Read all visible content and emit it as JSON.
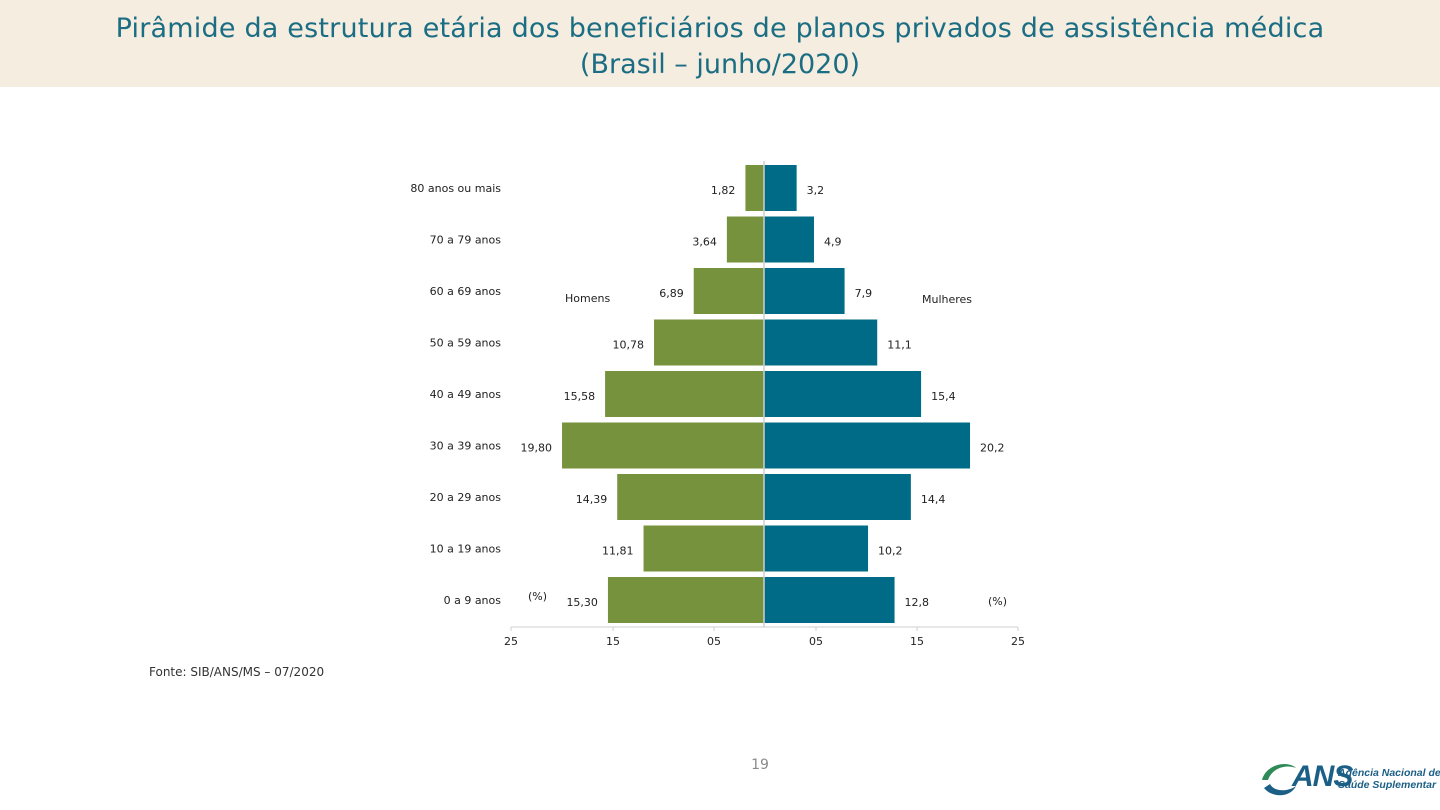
{
  "page": {
    "title_line1": "Pirâmide da estrutura etária dos beneficiários de planos privados de assistência médica",
    "title_line2": "(Brasil – junho/2020)",
    "source": "Fonte: SIB/ANS/MS – 07/2020",
    "page_number": "19"
  },
  "logo": {
    "acronym": "ANS",
    "org_line1": "Agência Nacional de",
    "org_line2": "Saúde Suplementar"
  },
  "colors": {
    "title": "#1b6d83",
    "band": "#f4ede0",
    "men": "#77923c",
    "women": "#006b86"
  },
  "chart_data": {
    "type": "bar",
    "orientation": "horizontal-pyramid",
    "title": "Pirâmide da estrutura etária dos beneficiários de planos privados de assistência médica (Brasil – junho/2020)",
    "categories": [
      "80 anos ou mais",
      "70 a 79 anos",
      "60 a 69 anos",
      "50 a 59 anos",
      "40 a 49 anos",
      "30 a 39 anos",
      "20 a 29 anos",
      "10 a 19 anos",
      "0 a 9 anos"
    ],
    "series": [
      {
        "name": "Homens",
        "side": "left",
        "values": [
          1.82,
          3.64,
          6.89,
          10.78,
          15.58,
          19.8,
          14.39,
          11.81,
          15.3
        ],
        "labels": [
          "1,82",
          "3,64",
          "6,89",
          "10,78",
          "15,58",
          "19,80",
          "14,39",
          "11,81",
          "15,30"
        ]
      },
      {
        "name": "Mulheres",
        "side": "right",
        "values": [
          3.2,
          4.9,
          7.9,
          11.1,
          15.4,
          20.2,
          14.4,
          10.2,
          12.8
        ],
        "labels": [
          "3,2",
          "4,9",
          "7,9",
          "11,1",
          "15,4",
          "20,2",
          "14,4",
          "10,2",
          "12,8"
        ]
      }
    ],
    "xlim": [
      0,
      25
    ],
    "x_ticks_left": [
      "25",
      "15",
      "05"
    ],
    "x_ticks_right": [
      "05",
      "15",
      "25"
    ],
    "unit_label_left": "(%)",
    "unit_label_right": "(%)",
    "legend": "inline labels near bars"
  }
}
